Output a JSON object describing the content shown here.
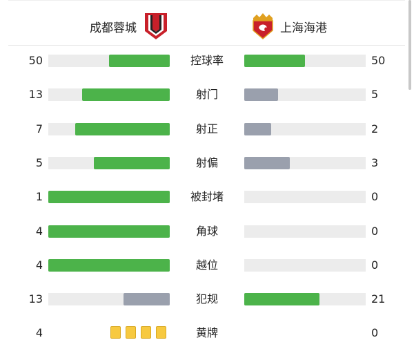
{
  "home": {
    "name": "成都蓉城"
  },
  "away": {
    "name": "上海海港"
  },
  "colors": {
    "lead": "#4cb34a",
    "trail": "#9aa0ad",
    "track": "#ececec",
    "card": "#f7c940"
  },
  "stats": [
    {
      "label": "控球率",
      "home": "50",
      "away": "50",
      "hv": 50,
      "av": 50
    },
    {
      "label": "射门",
      "home": "13",
      "away": "5",
      "hv": 13,
      "av": 5
    },
    {
      "label": "射正",
      "home": "7",
      "away": "2",
      "hv": 7,
      "av": 2
    },
    {
      "label": "射偏",
      "home": "5",
      "away": "3",
      "hv": 5,
      "av": 3
    },
    {
      "label": "被封堵",
      "home": "1",
      "away": "0",
      "hv": 1,
      "av": 0
    },
    {
      "label": "角球",
      "home": "4",
      "away": "0",
      "hv": 4,
      "av": 0
    },
    {
      "label": "越位",
      "home": "4",
      "away": "0",
      "hv": 4,
      "av": 0
    },
    {
      "label": "犯规",
      "home": "13",
      "away": "21",
      "hv": 13,
      "av": 21
    }
  ],
  "yellow": {
    "label": "黄牌",
    "home": "4",
    "away": "0",
    "home_cards": 4
  }
}
